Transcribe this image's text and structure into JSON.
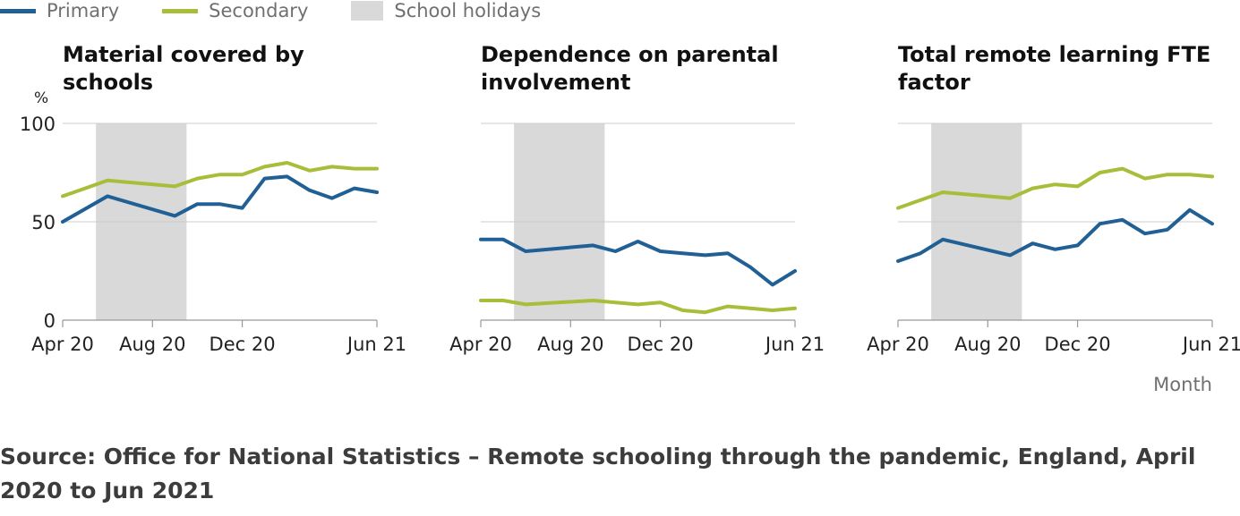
{
  "legend": {
    "primary": "Primary",
    "secondary": "Secondary",
    "holidays": "School holidays"
  },
  "colors": {
    "primary": "#206095",
    "secondary": "#A8BD3A",
    "holidays": "#D9D9D9",
    "grid": "#CCCCCC"
  },
  "y_unit": "%",
  "x_axis_title": "Month",
  "source": "Source: Office for National Statistics – Remote schooling through the pandemic, England, April 2020 to Jun 2021",
  "chart_data": [
    {
      "type": "line",
      "title": "Material covered by schools",
      "ylabel": "%",
      "xlabel": "",
      "ylim": [
        0,
        100
      ],
      "yticks": [
        0,
        50,
        100
      ],
      "xticks": [
        "Apr 20",
        "Aug 20",
        "Dec 20",
        "Jun 21"
      ],
      "shaded_range": [
        "Jun 20",
        "Sep 20"
      ],
      "series": [
        {
          "name": "Primary",
          "points": [
            [
              "Apr 20",
              50
            ],
            [
              "Jun 20",
              63
            ],
            [
              "Sep 20",
              53
            ],
            [
              "Oct 20",
              59
            ],
            [
              "Nov 20",
              59
            ],
            [
              "Dec 20",
              57
            ],
            [
              "Jan 21",
              72
            ],
            [
              "Feb 21",
              73
            ],
            [
              "Mar 21",
              66
            ],
            [
              "Apr 21",
              62
            ],
            [
              "May 21",
              67
            ],
            [
              "Jun 21",
              65
            ]
          ]
        },
        {
          "name": "Secondary",
          "points": [
            [
              "Apr 20",
              63
            ],
            [
              "May 20",
              67
            ],
            [
              "Jun 20",
              71
            ],
            [
              "Sep 20",
              68
            ],
            [
              "Oct 20",
              72
            ],
            [
              "Nov 20",
              74
            ],
            [
              "Dec 20",
              74
            ],
            [
              "Jan 21",
              78
            ],
            [
              "Feb 21",
              80
            ],
            [
              "Mar 21",
              76
            ],
            [
              "Apr 21",
              78
            ],
            [
              "May 21",
              77
            ],
            [
              "Jun 21",
              77
            ]
          ]
        }
      ]
    },
    {
      "type": "line",
      "title": "Dependence on parental involvement",
      "ylabel": "",
      "xlabel": "",
      "ylim": [
        0,
        100
      ],
      "yticks": [
        0,
        50,
        100
      ],
      "xticks": [
        "Apr 20",
        "Aug 20",
        "Dec 20",
        "Jun 21"
      ],
      "shaded_range": [
        "Jun 20",
        "Sep 20"
      ],
      "series": [
        {
          "name": "Primary",
          "points": [
            [
              "Apr 20",
              41
            ],
            [
              "May 20",
              41
            ],
            [
              "Jun 20",
              35
            ],
            [
              "Sep 20",
              38
            ],
            [
              "Oct 20",
              35
            ],
            [
              "Nov 20",
              40
            ],
            [
              "Dec 20",
              35
            ],
            [
              "Jan 21",
              34
            ],
            [
              "Feb 21",
              33
            ],
            [
              "Mar 21",
              34
            ],
            [
              "Apr 21",
              27
            ],
            [
              "May 21",
              18
            ],
            [
              "Jun 21",
              25
            ]
          ]
        },
        {
          "name": "Secondary",
          "points": [
            [
              "Apr 20",
              10
            ],
            [
              "May 20",
              10
            ],
            [
              "Jun 20",
              8
            ],
            [
              "Sep 20",
              10
            ],
            [
              "Oct 20",
              9
            ],
            [
              "Nov 20",
              8
            ],
            [
              "Dec 20",
              9
            ],
            [
              "Jan 21",
              5
            ],
            [
              "Feb 21",
              4
            ],
            [
              "Mar 21",
              7
            ],
            [
              "Apr 21",
              6
            ],
            [
              "May 21",
              5
            ],
            [
              "Jun 21",
              6
            ]
          ]
        }
      ]
    },
    {
      "type": "line",
      "title": "Total remote learning FTE factor",
      "ylabel": "",
      "xlabel": "Month",
      "ylim": [
        0,
        100
      ],
      "yticks": [
        0,
        50,
        100
      ],
      "xticks": [
        "Apr 20",
        "Aug 20",
        "Dec 20",
        "Jun 21"
      ],
      "shaded_range": [
        "Jun 20",
        "Sep 20"
      ],
      "series": [
        {
          "name": "Primary",
          "points": [
            [
              "Apr 20",
              30
            ],
            [
              "May 20",
              34
            ],
            [
              "Jun 20",
              41
            ],
            [
              "Sep 20",
              33
            ],
            [
              "Oct 20",
              39
            ],
            [
              "Nov 20",
              36
            ],
            [
              "Dec 20",
              38
            ],
            [
              "Jan 21",
              49
            ],
            [
              "Feb 21",
              51
            ],
            [
              "Mar 21",
              44
            ],
            [
              "Apr 21",
              46
            ],
            [
              "May 21",
              56
            ],
            [
              "Jun 21",
              49
            ]
          ]
        },
        {
          "name": "Secondary",
          "points": [
            [
              "Apr 20",
              57
            ],
            [
              "May 20",
              61
            ],
            [
              "Jun 20",
              65
            ],
            [
              "Sep 20",
              62
            ],
            [
              "Oct 20",
              67
            ],
            [
              "Nov 20",
              69
            ],
            [
              "Dec 20",
              68
            ],
            [
              "Jan 21",
              75
            ],
            [
              "Feb 21",
              77
            ],
            [
              "Mar 21",
              72
            ],
            [
              "Apr 21",
              74
            ],
            [
              "May 21",
              74
            ],
            [
              "Jun 21",
              73
            ]
          ]
        }
      ]
    }
  ]
}
